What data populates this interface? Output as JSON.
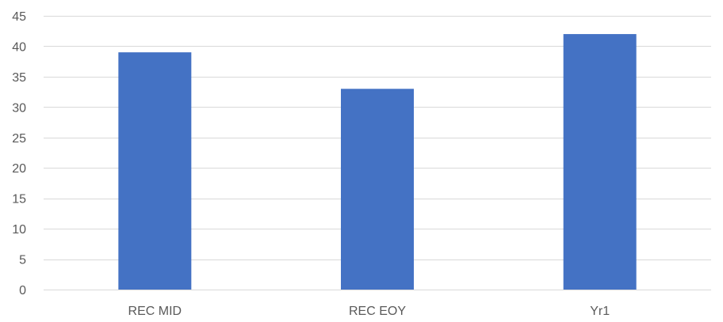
{
  "chart_data": {
    "type": "bar",
    "title": "",
    "xlabel": "",
    "ylabel": "",
    "categories": [
      "REC MID",
      "REC EOY",
      "Yr1"
    ],
    "series": [
      {
        "values": [
          39,
          33,
          42
        ],
        "color": "#4472c4"
      }
    ],
    "ylim": [
      0,
      45
    ],
    "yticks": [
      "0",
      "5",
      "10",
      "15",
      "20",
      "25",
      "30",
      "35",
      "40",
      "45"
    ],
    "grid": true,
    "legend": "none"
  }
}
